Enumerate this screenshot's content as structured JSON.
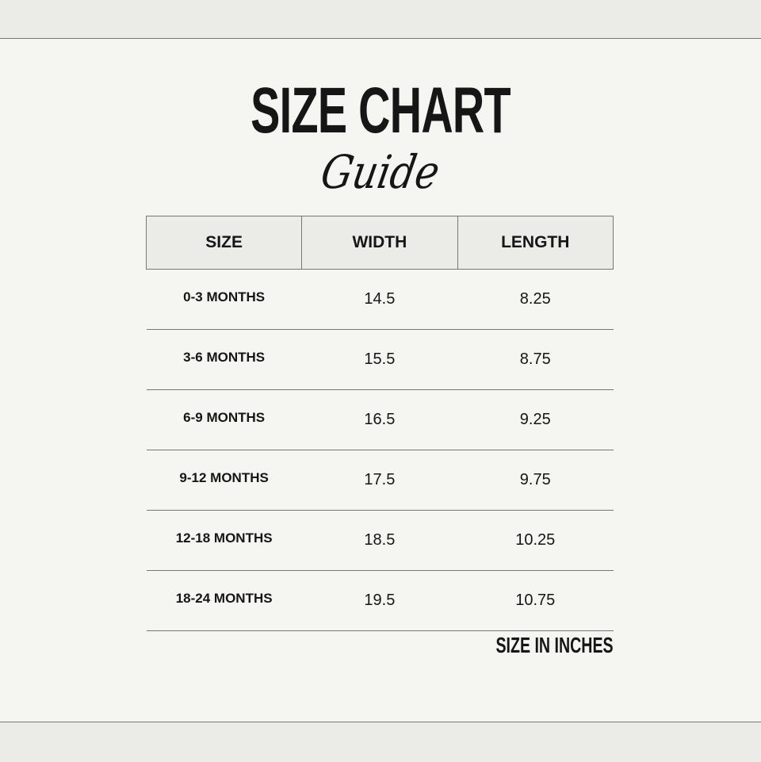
{
  "title": "SIZE CHART",
  "subtitle": "Guide",
  "table": {
    "headers": [
      "SIZE",
      "WIDTH",
      "LENGTH"
    ],
    "rows": [
      {
        "size": "0-3 MONTHS",
        "width": "14.5",
        "length": "8.25"
      },
      {
        "size": "3-6 MONTHS",
        "width": "15.5",
        "length": "8.75"
      },
      {
        "size": "6-9 MONTHS",
        "width": "16.5",
        "length": "9.25"
      },
      {
        "size": "9-12 MONTHS",
        "width": "17.5",
        "length": "9.75"
      },
      {
        "size": "12-18 MONTHS",
        "width": "18.5",
        "length": "10.25"
      },
      {
        "size": "18-24 MONTHS",
        "width": "19.5",
        "length": "10.75"
      }
    ]
  },
  "note": "SIZE IN INCHES"
}
